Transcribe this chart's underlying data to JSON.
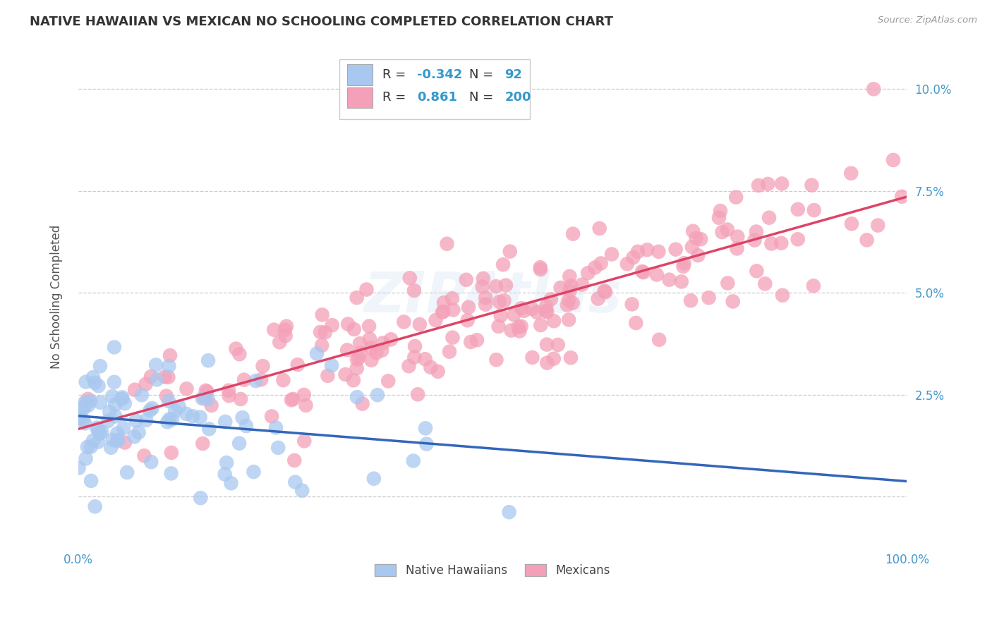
{
  "title": "NATIVE HAWAIIAN VS MEXICAN NO SCHOOLING COMPLETED CORRELATION CHART",
  "source": "Source: ZipAtlas.com",
  "ylabel": "No Schooling Completed",
  "xlim": [
    0,
    100
  ],
  "ylim": [
    -1.2,
    11.0
  ],
  "yticks": [
    0,
    2.5,
    5.0,
    7.5,
    10.0
  ],
  "xticks": [
    0,
    100
  ],
  "xtick_labels": [
    "0.0%",
    "100.0%"
  ],
  "ytick_labels": [
    "",
    "2.5%",
    "5.0%",
    "7.5%",
    "10.0%"
  ],
  "hawaiian_color": "#a8c8f0",
  "mexican_color": "#f4a0b8",
  "hawaiian_line_color": "#3366bb",
  "mexican_line_color": "#dd4466",
  "legend_R_hawaiian": "-0.342",
  "legend_N_hawaiian": "92",
  "legend_R_mexican": "0.861",
  "legend_N_mexican": "200",
  "background_color": "#ffffff",
  "watermark": "ZIPAtlas",
  "grid_color": "#cccccc",
  "title_color": "#333333",
  "axis_tick_color": "#4499cc",
  "axis_tick_fontsize": 12,
  "legend_text_color": "#3399cc"
}
